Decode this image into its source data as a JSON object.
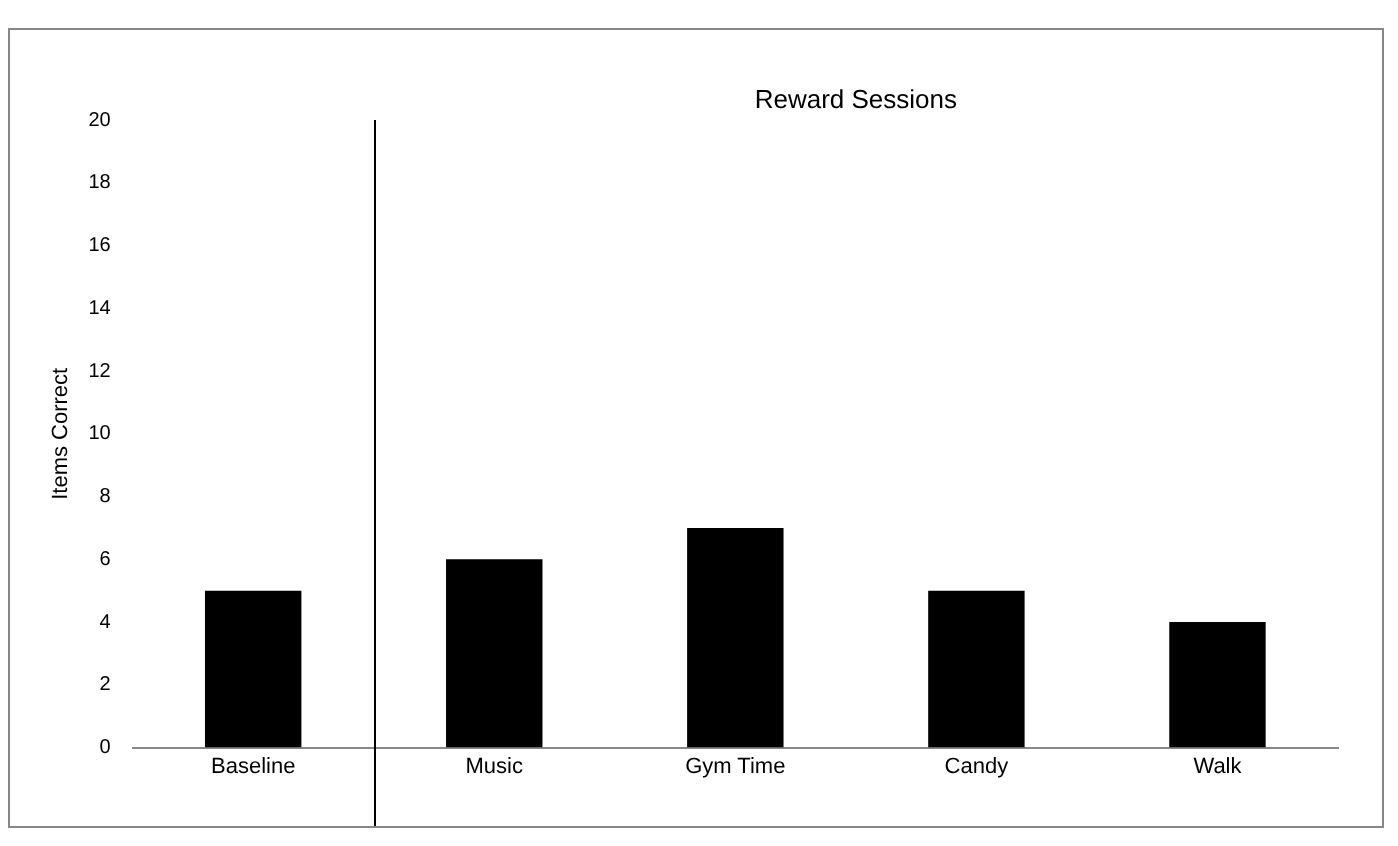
{
  "chart_data": {
    "type": "bar",
    "ylabel": "Items Correct",
    "annotations": [
      "Reward Sessions"
    ],
    "categories": [
      "Baseline",
      "Music",
      "Gym Time",
      "Candy",
      "Walk"
    ],
    "values": [
      5,
      6,
      7,
      5,
      4
    ],
    "color": "#000000",
    "ylim": [
      0,
      20
    ],
    "yticks": [
      0,
      2,
      4,
      6,
      8,
      10,
      12,
      14,
      16,
      18,
      20
    ],
    "grid": false,
    "legend": false
  }
}
